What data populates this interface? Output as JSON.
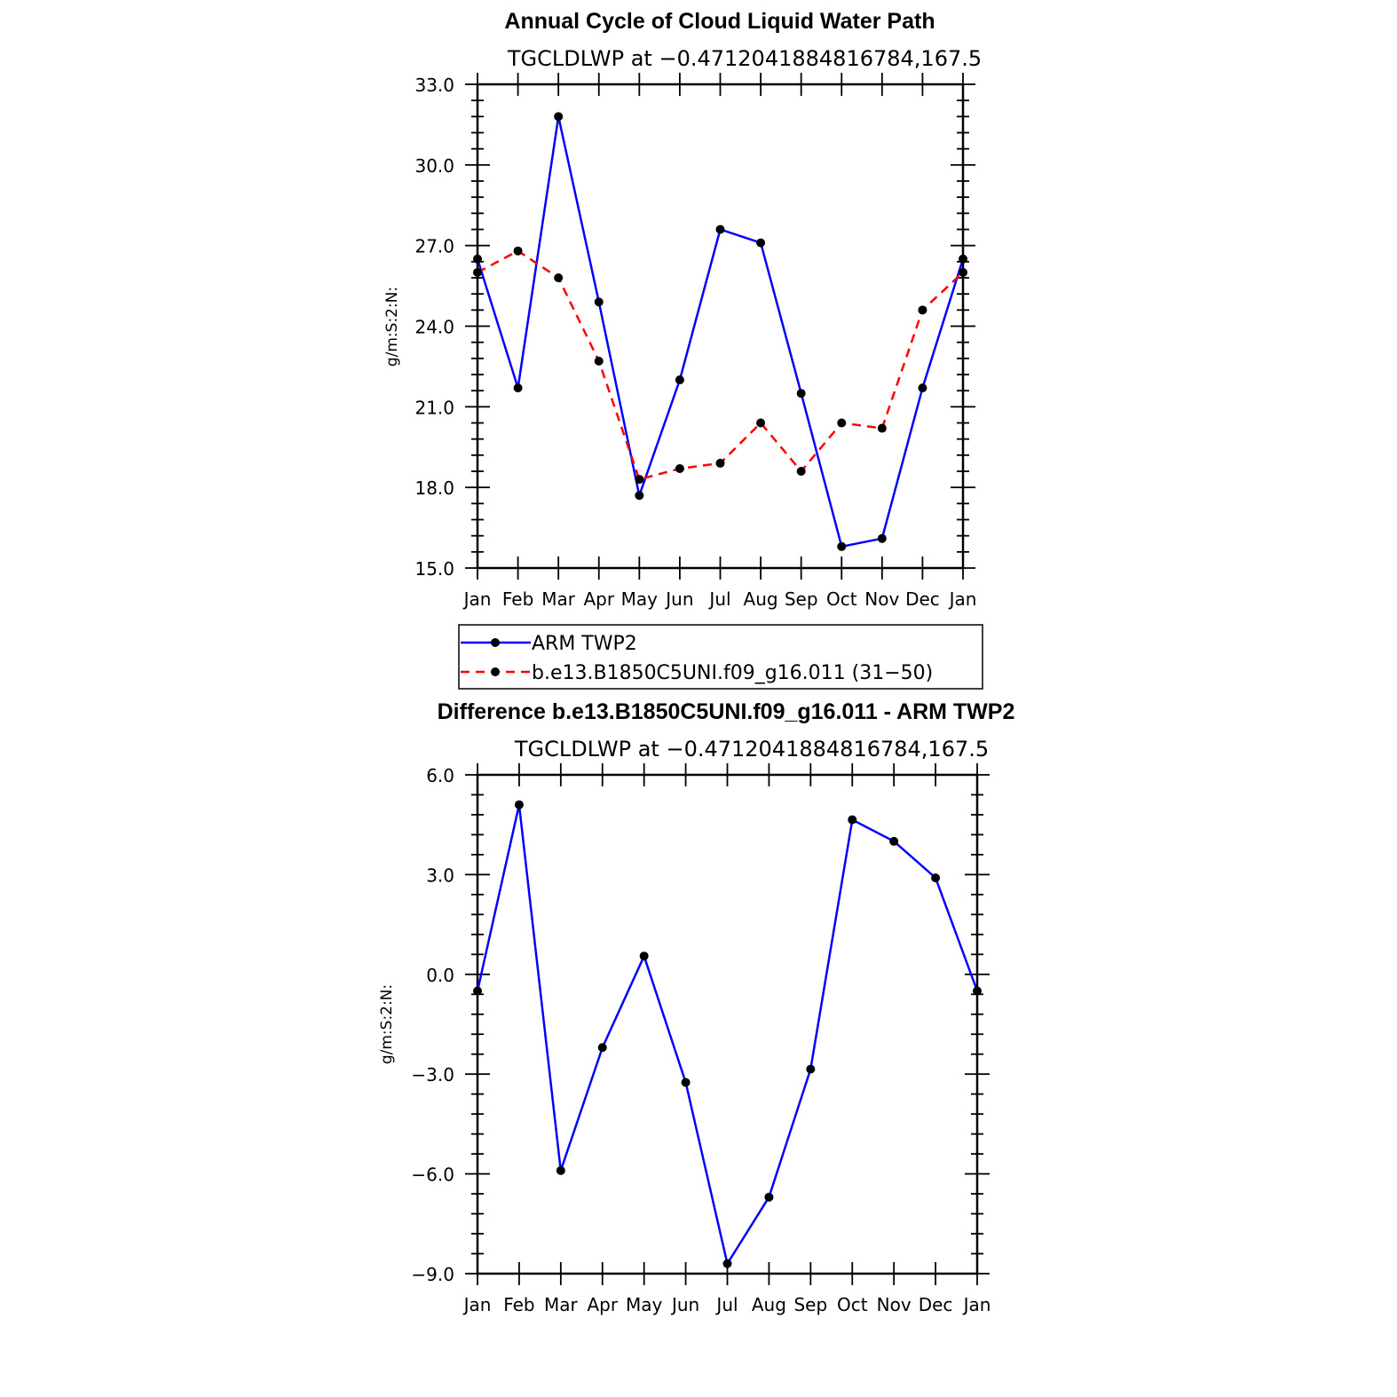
{
  "chart_data": [
    {
      "type": "line",
      "title": "Annual Cycle of Cloud Liquid Water Path",
      "subtitle": "TGCLDLWP  at −0.4712041884816784,167.5",
      "ylabel": "g/m:S:2:N:",
      "xlabel": "",
      "categories": [
        "Jan",
        "Feb",
        "Mar",
        "Apr",
        "May",
        "Jun",
        "Jul",
        "Aug",
        "Sep",
        "Oct",
        "Nov",
        "Dec",
        "Jan"
      ],
      "ylim": [
        15.0,
        33.0
      ],
      "yticks": [
        "33.0",
        "30.0",
        "27.0",
        "24.0",
        "21.0",
        "18.0",
        "15.0"
      ],
      "grid": false,
      "legend_position": "bottom",
      "series": [
        {
          "name": "ARM  TWP2",
          "color": "#0000ff",
          "dash": "solid",
          "values": [
            26.5,
            21.7,
            31.8,
            24.9,
            17.7,
            22.0,
            27.6,
            27.1,
            21.5,
            15.8,
            16.1,
            21.7,
            26.5
          ]
        },
        {
          "name": "b.e13.B1850C5UNI.f09_g16.011  (31−50)",
          "color": "#ff0000",
          "dash": "dashed",
          "values": [
            26.0,
            26.8,
            25.8,
            22.7,
            18.3,
            18.7,
            18.9,
            20.4,
            18.6,
            20.4,
            20.2,
            24.6,
            26.0
          ]
        }
      ]
    },
    {
      "type": "line",
      "title": "Difference b.e13.B1850C5UNI.f09_g16.011 - ARM TWP2",
      "subtitle": "TGCLDLWP  at −0.4712041884816784,167.5",
      "ylabel": "g/m:S:2:N:",
      "xlabel": "",
      "categories": [
        "Jan",
        "Feb",
        "Mar",
        "Apr",
        "May",
        "Jun",
        "Jul",
        "Aug",
        "Sep",
        "Oct",
        "Nov",
        "Dec",
        "Jan"
      ],
      "ylim": [
        -9.0,
        6.0
      ],
      "yticks": [
        "6.0",
        "3.0",
        "0.0",
        "−3.0",
        "−6.0",
        "−9.0"
      ],
      "grid": false,
      "series": [
        {
          "name": "",
          "color": "#0000ff",
          "dash": "solid",
          "values": [
            -0.5,
            5.1,
            -5.9,
            -2.2,
            0.55,
            -3.25,
            -8.7,
            -6.7,
            -2.85,
            4.65,
            4.0,
            2.9,
            -0.5
          ]
        }
      ]
    }
  ]
}
